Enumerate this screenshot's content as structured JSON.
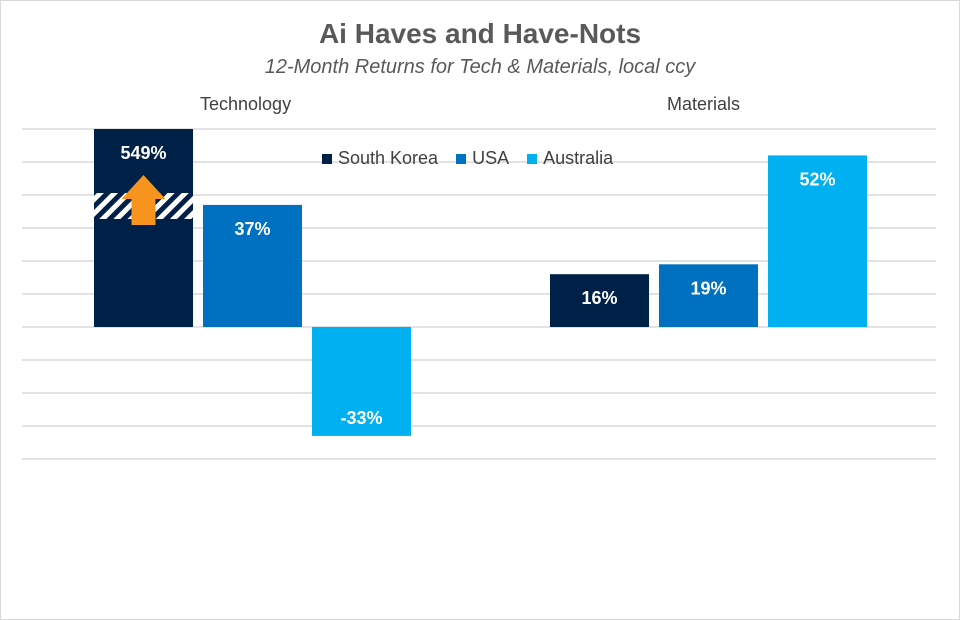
{
  "chart_data": {
    "type": "bar",
    "title": "Ai Haves and Have-Nots",
    "subtitle": "12-Month Returns for Tech & Materials, local ccy",
    "categories": [
      "Technology",
      "Materials"
    ],
    "series": [
      {
        "name": "South Korea",
        "color": "#002147",
        "values": [
          549,
          16
        ],
        "labels": [
          "549%",
          "16%"
        ]
      },
      {
        "name": "USA",
        "color": "#0070c0",
        "values": [
          37,
          19
        ],
        "labels": [
          "37%",
          "19%"
        ]
      },
      {
        "name": "Australia",
        "color": "#00b0f0",
        "values": [
          -33,
          52
        ],
        "labels": [
          "-33%",
          "52%"
        ]
      }
    ],
    "ylim": [
      -40,
      60
    ],
    "grid": true,
    "axis_break": {
      "series": "South Korea",
      "category": "Technology"
    },
    "annotation": {
      "type": "up-arrow",
      "color": "#f7941d"
    },
    "legend_position": "top-center"
  }
}
